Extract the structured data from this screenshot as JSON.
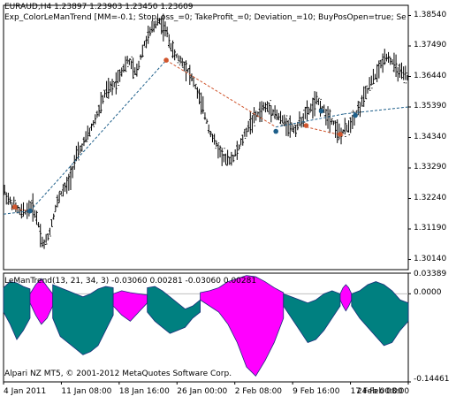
{
  "main_panel": {
    "header_symbol": "EURAUD,H4",
    "header_prices": "1.23897 1.23903 1.23450 1.23609",
    "header_indicator": "Exp_ColorLeManTrend [MM=-0.1; StopLoss_=0; TakeProfit_=0; Deviation_=10; BuyPosOpen=true; SellPosO",
    "y_ticks": [
      "1.38540",
      "1.37490",
      "1.36440",
      "1.35390",
      "1.34340",
      "1.33290",
      "1.32240",
      "1.31190",
      "1.30140"
    ]
  },
  "sub_panel": {
    "header": "LeManTrend(13, 21, 34, 3) -0.03060 0.00281 -0.03060 0.00281",
    "y_ticks": [
      "0.03389",
      "0.0000",
      "-0.14461"
    ],
    "copyright": "Alpari NZ MT5, © 2001-2012 MetaQuotes Software Corp."
  },
  "x_axis": {
    "labels": [
      "4 Jan 2011",
      "11 Jan 08:00",
      "18 Jan 16:00",
      "26 Jan 00:00",
      "2 Feb 08:00",
      "9 Feb 16:00",
      "17 Feb 00:00",
      "24 Feb 08:00"
    ]
  },
  "colors": {
    "bars": "#000000",
    "buy_signal": "#1e5f8a",
    "sell_signal": "#d0562e",
    "trend_bull": "#008080",
    "trend_bear": "#ff00ff",
    "trend_edge": "#1a2f7a",
    "frame": "#000000"
  },
  "chart_data": [
    {
      "type": "ohlc",
      "title": "EURAUD,H4",
      "ylim": [
        1.2979,
        1.3889
      ],
      "close_path": [
        [
          0,
          1.3255
        ],
        [
          3,
          1.3215
        ],
        [
          6,
          1.3195
        ],
        [
          9,
          1.3175
        ],
        [
          12,
          1.318
        ],
        [
          15,
          1.32
        ],
        [
          18,
          1.315
        ],
        [
          21,
          1.306
        ],
        [
          24,
          1.31
        ],
        [
          27,
          1.318
        ],
        [
          30,
          1.324
        ],
        [
          34,
          1.327
        ],
        [
          38,
          1.336
        ],
        [
          42,
          1.341
        ],
        [
          46,
          1.346
        ],
        [
          50,
          1.352
        ],
        [
          54,
          1.359
        ],
        [
          58,
          1.361
        ],
        [
          62,
          1.366
        ],
        [
          66,
          1.37
        ],
        [
          70,
          1.365
        ],
        [
          74,
          1.375
        ],
        [
          78,
          1.38
        ],
        [
          82,
          1.384
        ],
        [
          86,
          1.38
        ],
        [
          90,
          1.372
        ],
        [
          94,
          1.37
        ],
        [
          98,
          1.366
        ],
        [
          102,
          1.36
        ],
        [
          106,
          1.352
        ],
        [
          110,
          1.344
        ],
        [
          114,
          1.339
        ],
        [
          118,
          1.335
        ],
        [
          122,
          1.337
        ],
        [
          126,
          1.342
        ],
        [
          130,
          1.348
        ],
        [
          134,
          1.351
        ],
        [
          138,
          1.354
        ],
        [
          142,
          1.353
        ],
        [
          146,
          1.35
        ],
        [
          150,
          1.348
        ],
        [
          154,
          1.346
        ],
        [
          158,
          1.35
        ],
        [
          162,
          1.353
        ],
        [
          166,
          1.356
        ],
        [
          170,
          1.352
        ],
        [
          174,
          1.349
        ],
        [
          178,
          1.344
        ],
        [
          182,
          1.347
        ],
        [
          186,
          1.351
        ],
        [
          190,
          1.356
        ],
        [
          194,
          1.362
        ],
        [
          198,
          1.366
        ],
        [
          202,
          1.372
        ],
        [
          206,
          1.369
        ],
        [
          210,
          1.365
        ],
        [
          214,
          1.364
        ]
      ],
      "signal_line": {
        "buy_segments": [
          [
            [
              0,
              1.317
            ],
            [
              14,
              1.3181
            ]
          ],
          [
            [
              14,
              1.3181
            ],
            [
              86,
              1.37
            ]
          ],
          [
            [
              144,
              1.347
            ],
            [
              180,
              1.3515
            ]
          ],
          [
            [
              180,
              1.3515
            ],
            [
              214,
              1.3539
            ]
          ]
        ],
        "sell_segments": [
          [
            [
              4,
              1.319
            ],
            [
              14,
              1.3181
            ]
          ],
          [
            [
              86,
              1.37
            ],
            [
              144,
              1.347
            ]
          ],
          [
            [
              160,
              1.347
            ],
            [
              180,
              1.344
            ]
          ]
        ]
      },
      "markers": [
        {
          "kind": "sell",
          "x": 6,
          "y": 1.3195
        },
        {
          "kind": "buy",
          "x": 14,
          "y": 1.3181
        },
        {
          "kind": "sell",
          "x": 86,
          "y": 1.37
        },
        {
          "kind": "buy",
          "x": 144,
          "y": 1.3455
        },
        {
          "kind": "sell",
          "x": 160,
          "y": 1.3475
        },
        {
          "kind": "buy",
          "x": 168,
          "y": 1.3525
        },
        {
          "kind": "sell",
          "x": 178,
          "y": 1.3445
        },
        {
          "kind": "buy",
          "x": 186,
          "y": 1.351
        }
      ],
      "x_extent": [
        0,
        214
      ]
    },
    {
      "type": "area",
      "title": "LeManTrend(13, 21, 34, 3)",
      "ylim": [
        -0.14461,
        0.03389
      ],
      "zero_line": 0.0,
      "x_extent": [
        0,
        214
      ],
      "segments": [
        {
          "color": "bull",
          "from": 0,
          "to": 14,
          "upper": [
            0.01,
            0.02,
            0.018,
            0.012,
            0.008
          ],
          "lower": [
            -0.03,
            -0.05,
            -0.075,
            -0.06,
            -0.04
          ]
        },
        {
          "color": "bear",
          "from": 14,
          "to": 26,
          "upper": [
            0.0,
            0.015,
            0.025,
            0.012,
            0.0
          ],
          "lower": [
            -0.015,
            -0.035,
            -0.05,
            -0.04,
            -0.02
          ]
        },
        {
          "color": "bull",
          "from": 26,
          "to": 58,
          "upper": [
            0.015,
            0.01,
            0.005,
            0.0,
            -0.005,
            0.0,
            0.008,
            0.012,
            0.01
          ],
          "lower": [
            -0.04,
            -0.07,
            -0.08,
            -0.09,
            -0.1,
            -0.095,
            -0.085,
            -0.06,
            -0.035
          ]
        },
        {
          "color": "bear",
          "from": 58,
          "to": 76,
          "upper": [
            0.0,
            0.005,
            0.002,
            0.0,
            -0.002
          ],
          "lower": [
            -0.02,
            -0.035,
            -0.045,
            -0.03,
            -0.015
          ]
        },
        {
          "color": "bull",
          "from": 76,
          "to": 104,
          "upper": [
            0.01,
            0.012,
            0.005,
            -0.005,
            -0.015,
            -0.025,
            -0.02,
            -0.01
          ],
          "lower": [
            -0.03,
            -0.045,
            -0.055,
            -0.065,
            -0.06,
            -0.055,
            -0.04,
            -0.03
          ]
        },
        {
          "color": "bear",
          "from": 104,
          "to": 148,
          "upper": [
            0.002,
            0.005,
            0.01,
            0.02,
            0.025,
            0.03,
            0.028,
            0.02,
            0.01,
            0.002
          ],
          "lower": [
            -0.01,
            -0.02,
            -0.03,
            -0.05,
            -0.08,
            -0.12,
            -0.135,
            -0.11,
            -0.08,
            -0.04
          ]
        },
        {
          "color": "bull",
          "from": 148,
          "to": 178,
          "upper": [
            0.0,
            -0.005,
            -0.01,
            -0.015,
            -0.01,
            0.0,
            0.005,
            0.0
          ],
          "lower": [
            -0.02,
            -0.04,
            -0.06,
            -0.08,
            -0.075,
            -0.06,
            -0.04,
            -0.02
          ]
        },
        {
          "color": "bear",
          "from": 178,
          "to": 184,
          "upper": [
            0.0,
            0.01,
            0.015,
            0.01,
            0.0
          ],
          "lower": [
            -0.01,
            -0.02,
            -0.028,
            -0.02,
            -0.01
          ]
        },
        {
          "color": "bull",
          "from": 184,
          "to": 214,
          "upper": [
            0.0,
            0.005,
            0.015,
            0.02,
            0.015,
            0.005,
            -0.01,
            -0.015
          ],
          "lower": [
            -0.02,
            -0.04,
            -0.055,
            -0.07,
            -0.085,
            -0.08,
            -0.06,
            -0.045
          ]
        }
      ]
    }
  ]
}
